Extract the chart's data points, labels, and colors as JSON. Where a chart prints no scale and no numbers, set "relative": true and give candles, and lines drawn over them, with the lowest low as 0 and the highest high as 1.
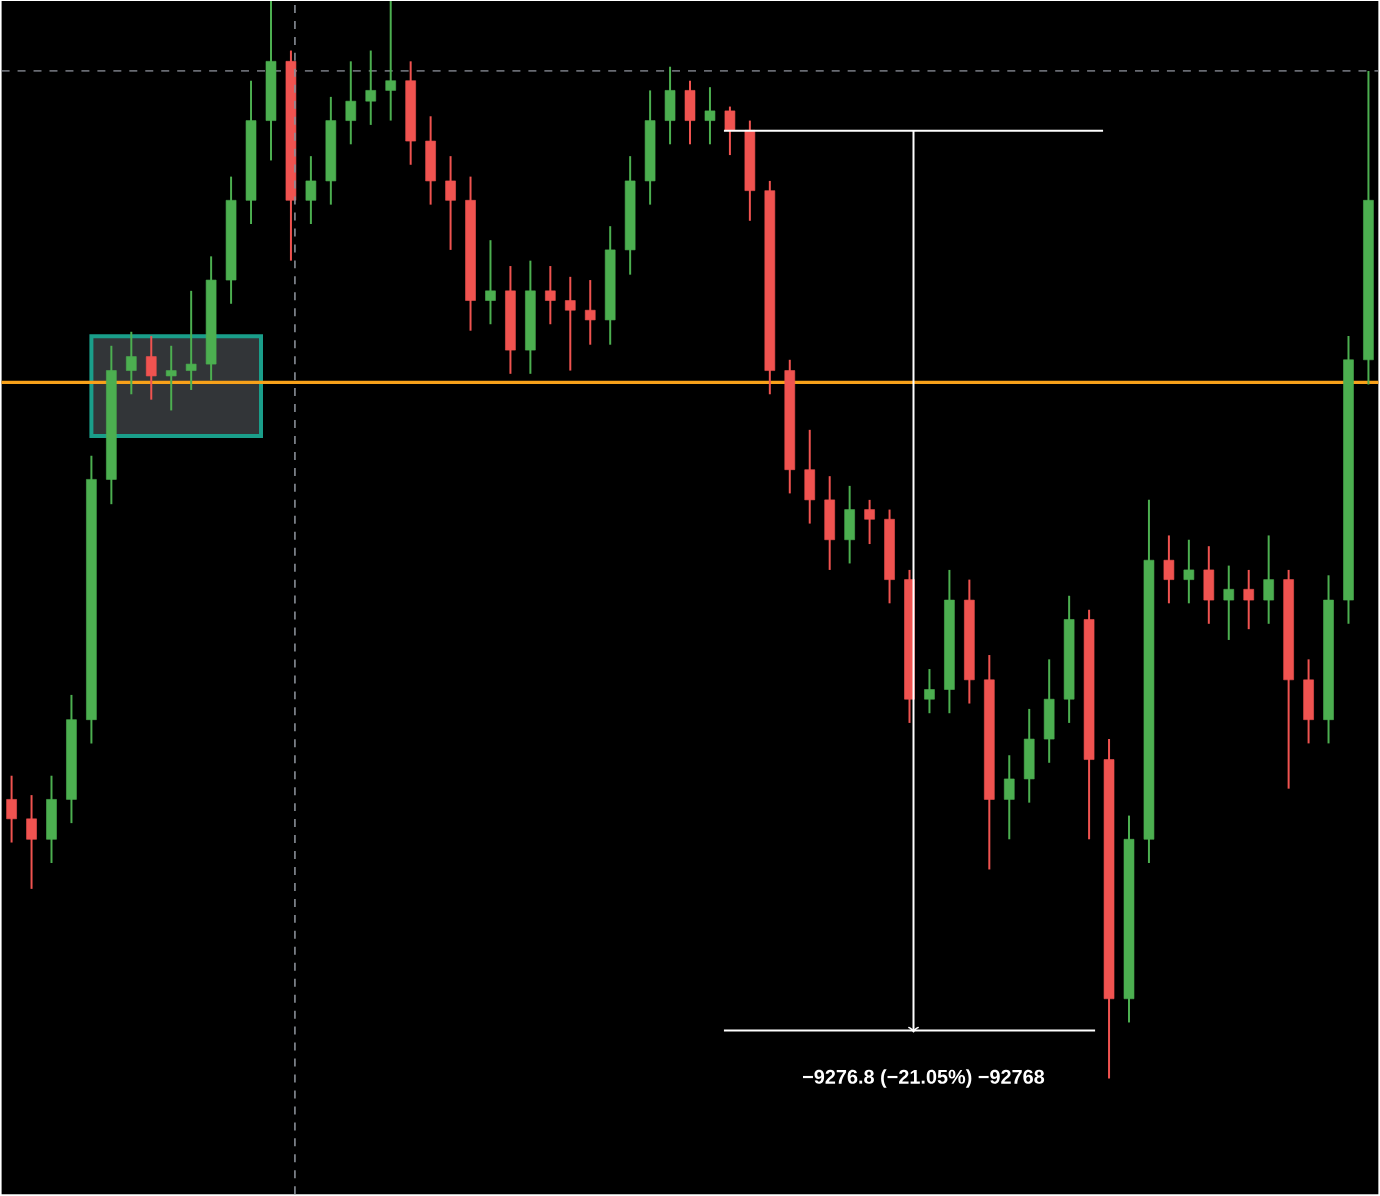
{
  "chart_data": {
    "type": "candlestick",
    "relative": true,
    "categories": [
      null,
      null,
      null,
      null,
      null,
      null,
      null,
      null,
      null,
      null,
      null,
      null,
      null,
      null,
      null,
      null,
      null,
      null,
      null,
      null,
      null,
      null,
      null,
      null,
      null,
      null,
      null,
      null,
      null,
      null,
      null,
      null,
      null,
      null,
      null,
      null,
      null,
      null,
      null,
      null,
      null,
      null,
      null,
      null,
      null,
      null,
      null,
      null,
      null,
      null,
      null,
      null,
      null,
      null,
      null,
      null,
      null,
      null,
      null,
      null,
      null,
      null,
      null,
      null,
      null,
      null,
      null,
      null,
      null
    ],
    "ohlc": [
      [
        0.259,
        0.281,
        0.219,
        0.241
      ],
      [
        0.241,
        0.263,
        0.176,
        0.222
      ],
      [
        0.222,
        0.281,
        0.2,
        0.259
      ],
      [
        0.259,
        0.356,
        0.237,
        0.333
      ],
      [
        0.333,
        0.578,
        0.311,
        0.556
      ],
      [
        0.556,
        0.68,
        0.533,
        0.657
      ],
      [
        0.657,
        0.693,
        0.635,
        0.67
      ],
      [
        0.67,
        0.689,
        0.63,
        0.652
      ],
      [
        0.652,
        0.68,
        0.62,
        0.657
      ],
      [
        0.657,
        0.731,
        0.639,
        0.663
      ],
      [
        0.663,
        0.763,
        0.648,
        0.741
      ],
      [
        0.741,
        0.837,
        0.719,
        0.815
      ],
      [
        0.815,
        0.926,
        0.793,
        0.889
      ],
      [
        0.889,
        1.0,
        0.852,
        0.944
      ],
      [
        0.944,
        0.954,
        0.759,
        0.815
      ],
      [
        0.815,
        0.856,
        0.793,
        0.833
      ],
      [
        0.833,
        0.911,
        0.811,
        0.889
      ],
      [
        0.889,
        0.944,
        0.867,
        0.907
      ],
      [
        0.907,
        0.954,
        0.885,
        0.917
      ],
      [
        0.917,
        1.0,
        0.889,
        0.926
      ],
      [
        0.926,
        0.944,
        0.848,
        0.87
      ],
      [
        0.87,
        0.893,
        0.811,
        0.833
      ],
      [
        0.833,
        0.856,
        0.769,
        0.815
      ],
      [
        0.815,
        0.837,
        0.694,
        0.722
      ],
      [
        0.722,
        0.778,
        0.7,
        0.731
      ],
      [
        0.731,
        0.754,
        0.654,
        0.676
      ],
      [
        0.676,
        0.759,
        0.654,
        0.731
      ],
      [
        0.731,
        0.754,
        0.7,
        0.722
      ],
      [
        0.722,
        0.744,
        0.657,
        0.713
      ],
      [
        0.713,
        0.741,
        0.681,
        0.704
      ],
      [
        0.704,
        0.791,
        0.681,
        0.769
      ],
      [
        0.769,
        0.856,
        0.746,
        0.833
      ],
      [
        0.833,
        0.917,
        0.811,
        0.889
      ],
      [
        0.889,
        0.939,
        0.867,
        0.917
      ],
      [
        0.917,
        0.926,
        0.867,
        0.889
      ],
      [
        0.889,
        0.92,
        0.867,
        0.898
      ],
      [
        0.898,
        0.902,
        0.857,
        0.88
      ],
      [
        0.88,
        0.889,
        0.796,
        0.824
      ],
      [
        0.824,
        0.833,
        0.635,
        0.657
      ],
      [
        0.657,
        0.667,
        0.543,
        0.565
      ],
      [
        0.565,
        0.602,
        0.515,
        0.537
      ],
      [
        0.537,
        0.559,
        0.472,
        0.5
      ],
      [
        0.5,
        0.55,
        0.478,
        0.528
      ],
      [
        0.528,
        0.537,
        0.496,
        0.519
      ],
      [
        0.519,
        0.528,
        0.441,
        0.463
      ],
      [
        0.463,
        0.472,
        0.33,
        0.352
      ],
      [
        0.352,
        0.38,
        0.339,
        0.361
      ],
      [
        0.361,
        0.472,
        0.339,
        0.444
      ],
      [
        0.444,
        0.463,
        0.348,
        0.37
      ],
      [
        0.37,
        0.393,
        0.194,
        0.259
      ],
      [
        0.259,
        0.3,
        0.222,
        0.278
      ],
      [
        0.278,
        0.343,
        0.256,
        0.315
      ],
      [
        0.315,
        0.389,
        0.293,
        0.352
      ],
      [
        0.352,
        0.448,
        0.33,
        0.426
      ],
      [
        0.426,
        0.435,
        0.222,
        0.296
      ],
      [
        0.296,
        0.315,
        0.0,
        0.074
      ],
      [
        0.074,
        0.244,
        0.052,
        0.222
      ],
      [
        0.222,
        0.537,
        0.2,
        0.481
      ],
      [
        0.481,
        0.504,
        0.441,
        0.463
      ],
      [
        0.463,
        0.5,
        0.441,
        0.472
      ],
      [
        0.472,
        0.494,
        0.422,
        0.444
      ],
      [
        0.444,
        0.476,
        0.407,
        0.454
      ],
      [
        0.454,
        0.472,
        0.417,
        0.444
      ],
      [
        0.444,
        0.504,
        0.422,
        0.463
      ],
      [
        0.463,
        0.472,
        0.269,
        0.37
      ],
      [
        0.37,
        0.389,
        0.311,
        0.333
      ],
      [
        0.333,
        0.467,
        0.311,
        0.444
      ],
      [
        0.444,
        0.689,
        0.422,
        0.667
      ],
      [
        0.667,
        0.935,
        0.644,
        0.815
      ]
    ],
    "colors": [
      "#f05350",
      "#f05350",
      "#4caf50",
      "#4caf50",
      "#4caf50",
      "#4caf50",
      "#4caf50",
      "#f05350",
      "#4caf50",
      "#4caf50",
      "#4caf50",
      "#4caf50",
      "#4caf50",
      "#4caf50",
      "#f05350",
      "#4caf50",
      "#4caf50",
      "#4caf50",
      "#4caf50",
      "#4caf50",
      "#f05350",
      "#f05350",
      "#f05350",
      "#f05350",
      "#4caf50",
      "#f05350",
      "#4caf50",
      "#f05350",
      "#f05350",
      "#f05350",
      "#4caf50",
      "#4caf50",
      "#4caf50",
      "#4caf50",
      "#f05350",
      "#4caf50",
      "#f05350",
      "#f05350",
      "#f05350",
      "#f05350",
      "#f05350",
      "#f05350",
      "#4caf50",
      "#f05350",
      "#f05350",
      "#f05350",
      "#4caf50",
      "#4caf50",
      "#f05350",
      "#f05350",
      "#4caf50",
      "#4caf50",
      "#4caf50",
      "#4caf50",
      "#f05350",
      "#f05350",
      "#4caf50",
      "#4caf50",
      "#f05350",
      "#4caf50",
      "#f05350",
      "#4caf50",
      "#f05350",
      "#4caf50",
      "#f05350",
      "#f05350",
      "#4caf50",
      "#4caf50",
      "#4caf50"
    ],
    "ref_lines": [
      {
        "axis": "y",
        "value": 0.646,
        "color": "#f7a11a",
        "line_style": "solid"
      },
      {
        "axis": "y",
        "value": 0.935,
        "color": "#8a8f98",
        "line_style": "dashed"
      }
    ],
    "annotations": [
      "−9276.8 (−21.05%) −92768"
    ]
  }
}
